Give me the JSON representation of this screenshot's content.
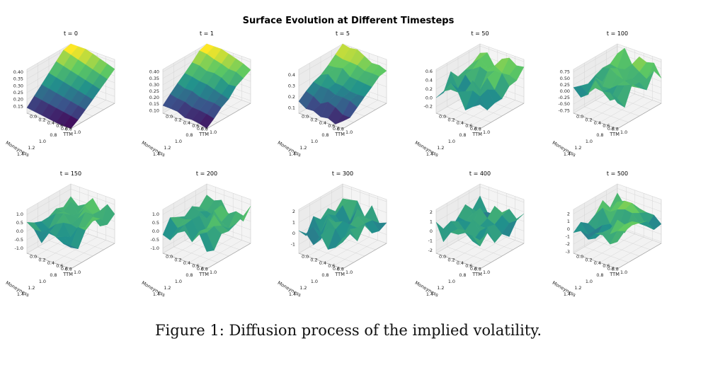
{
  "title": "Surface Evolution at Different Timesteps",
  "caption": "Figure 1: Diffusion process of the implied volatility.",
  "colors": {
    "colormap": [
      "#440154",
      "#3b528b",
      "#21918c",
      "#5ec962",
      "#fde725"
    ]
  },
  "chart_data": [
    {
      "type": "surface3d",
      "title": "t = 0",
      "xlabel": "Moneyness",
      "ylabel": "TTM",
      "x_ticks": [
        "0.6",
        "0.8",
        "1.0",
        "1.2",
        "1.4"
      ],
      "y_ticks": [
        "0.0",
        "0.2",
        "0.4",
        "0.6",
        "0.8",
        "1.0"
      ],
      "z_ticks": [
        "0.15",
        "0.20",
        "0.25",
        "0.30",
        "0.35",
        "0.40"
      ],
      "zlim": [
        0.1,
        0.42
      ],
      "noise": 0
    },
    {
      "type": "surface3d",
      "title": "t = 1",
      "xlabel": "Moneyness",
      "ylabel": "TTM",
      "x_ticks": [
        "0.6",
        "0.8",
        "1.0",
        "1.2",
        "1.4"
      ],
      "y_ticks": [
        "0.0",
        "0.2",
        "0.4",
        "0.6",
        "0.8",
        "1.0"
      ],
      "z_ticks": [
        "0.10",
        "0.15",
        "0.20",
        "0.25",
        "0.30",
        "0.35",
        "0.40"
      ],
      "zlim": [
        0.08,
        0.42
      ],
      "noise": 0.012
    },
    {
      "type": "surface3d",
      "title": "t = 5",
      "xlabel": "Moneyness",
      "ylabel": "TTM",
      "x_ticks": [
        "0.6",
        "0.8",
        "1.0",
        "1.2",
        "1.4"
      ],
      "y_ticks": [
        "0.0",
        "0.2",
        "0.4",
        "0.6",
        "0.8",
        "1.0"
      ],
      "z_ticks": [
        "0.1",
        "0.2",
        "0.3",
        "0.4"
      ],
      "zlim": [
        0.05,
        0.45
      ],
      "noise": 0.03
    },
    {
      "type": "surface3d",
      "title": "t = 50",
      "xlabel": "Moneyness",
      "ylabel": "TTM",
      "x_ticks": [
        "0.6",
        "0.8",
        "1.0",
        "1.2",
        "1.4"
      ],
      "y_ticks": [
        "0.0",
        "0.2",
        "0.4",
        "0.6",
        "0.8",
        "1.0"
      ],
      "z_ticks": [
        "-0.2",
        "0.0",
        "0.2",
        "0.4",
        "0.6"
      ],
      "zlim": [
        -0.35,
        0.65
      ],
      "noise": 0.2
    },
    {
      "type": "surface3d",
      "title": "t = 100",
      "xlabel": "Moneyness",
      "ylabel": "TTM",
      "x_ticks": [
        "0.6",
        "0.8",
        "1.0",
        "1.2",
        "1.4"
      ],
      "y_ticks": [
        "0.0",
        "0.2",
        "0.4",
        "0.6",
        "0.8",
        "1.0"
      ],
      "z_ticks": [
        "-0.75",
        "-0.50",
        "-0.25",
        "0.00",
        "0.25",
        "0.50",
        "0.75"
      ],
      "zlim": [
        -0.85,
        0.85
      ],
      "noise": 0.38
    },
    {
      "type": "surface3d",
      "title": "t = 150",
      "xlabel": "Moneyness",
      "ylabel": "TTM",
      "x_ticks": [
        "0.6",
        "0.8",
        "1.0",
        "1.2",
        "1.4"
      ],
      "y_ticks": [
        "0.0",
        "0.2",
        "0.4",
        "0.6",
        "0.8",
        "1.0"
      ],
      "z_ticks": [
        "-1.0",
        "-0.5",
        "0.0",
        "0.5",
        "1.0"
      ],
      "zlim": [
        -1.3,
        1.3
      ],
      "noise": 0.55
    },
    {
      "type": "surface3d",
      "title": "t = 200",
      "xlabel": "Moneyness",
      "ylabel": "TTM",
      "x_ticks": [
        "0.6",
        "0.8",
        "1.0",
        "1.2",
        "1.4"
      ],
      "y_ticks": [
        "0.0",
        "0.2",
        "0.4",
        "0.6",
        "0.8",
        "1.0"
      ],
      "z_ticks": [
        "-1.0",
        "-0.5",
        "0.0",
        "0.5",
        "1.0"
      ],
      "zlim": [
        -1.3,
        1.3
      ],
      "noise": 0.6
    },
    {
      "type": "surface3d",
      "title": "t = 300",
      "xlabel": "Moneyness",
      "ylabel": "TTM",
      "x_ticks": [
        "0.6",
        "0.8",
        "1.0",
        "1.2",
        "1.4"
      ],
      "y_ticks": [
        "0.0",
        "0.2",
        "0.4",
        "0.6",
        "0.8",
        "1.0"
      ],
      "z_ticks": [
        "-1",
        "0",
        "1",
        "2"
      ],
      "zlim": [
        -1.8,
        2.2
      ],
      "noise": 0.9
    },
    {
      "type": "surface3d",
      "title": "t = 400",
      "xlabel": "Moneyness",
      "ylabel": "TTM",
      "x_ticks": [
        "0.6",
        "0.8",
        "1.0",
        "1.2",
        "1.4"
      ],
      "y_ticks": [
        "0.0",
        "0.2",
        "0.4",
        "0.6",
        "0.8",
        "1.0"
      ],
      "z_ticks": [
        "-2",
        "-1",
        "0",
        "1",
        "2"
      ],
      "zlim": [
        -2.3,
        2.3
      ],
      "noise": 1.0
    },
    {
      "type": "surface3d",
      "title": "t = 500",
      "xlabel": "Moneyness",
      "ylabel": "TTM",
      "x_ticks": [
        "0.6",
        "0.8",
        "1.0",
        "1.2",
        "1.4"
      ],
      "y_ticks": [
        "0.0",
        "0.2",
        "0.4",
        "0.6",
        "0.8",
        "1.0"
      ],
      "z_ticks": [
        "-3",
        "-2",
        "-1",
        "0",
        "1",
        "2"
      ],
      "zlim": [
        -3.2,
        2.6
      ],
      "noise": 1.3
    }
  ]
}
